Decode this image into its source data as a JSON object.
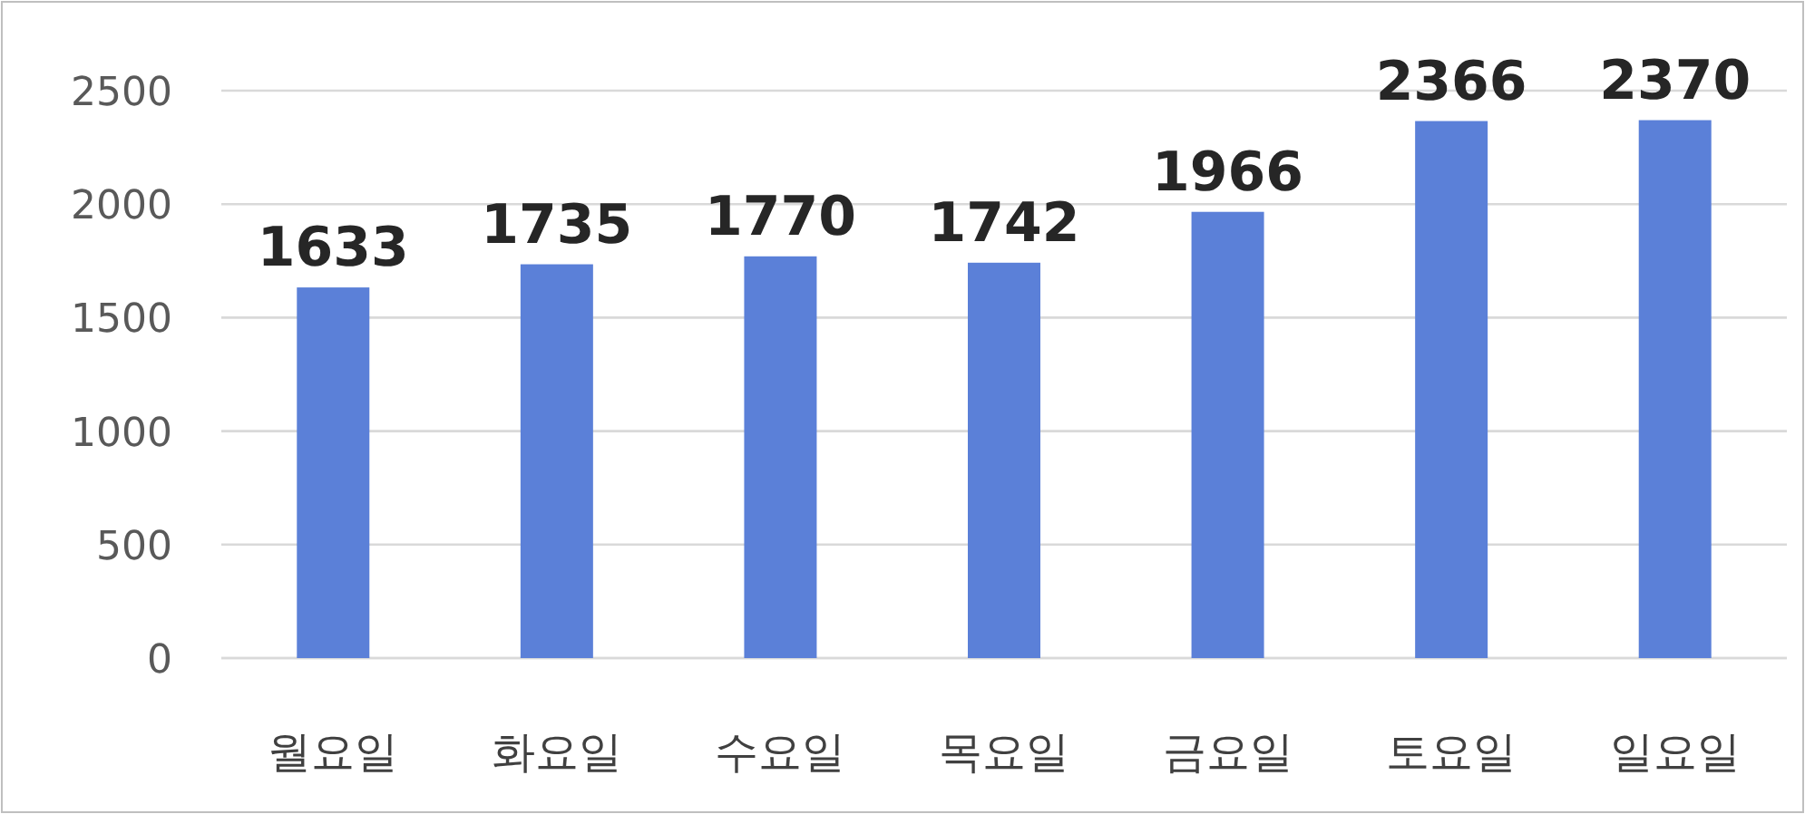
{
  "chart_data": {
    "type": "bar",
    "categories": [
      "월요일",
      "화요일",
      "수요일",
      "목요일",
      "금요일",
      "토요일",
      "일요일"
    ],
    "values": [
      1633,
      1735,
      1770,
      1742,
      1966,
      2366,
      2370
    ],
    "color": "#5b80d8",
    "ylim": [
      0,
      2500
    ],
    "yticks": [
      0,
      500,
      1000,
      1500,
      2000,
      2500
    ],
    "grid": "y",
    "data_labels": true
  }
}
